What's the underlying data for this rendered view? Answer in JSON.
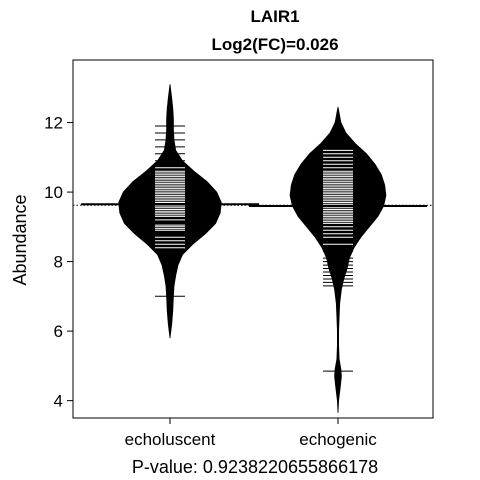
{
  "chart_data": {
    "type": "beanplot",
    "title": "LAIR1",
    "subtitle": "Log2(FC)=0.026",
    "xlabel": "P-value: 0.9238220655866178",
    "ylabel": "Abundance",
    "ylim": [
      3.5,
      13.8
    ],
    "yticks": [
      4,
      6,
      8,
      10,
      12
    ],
    "overall_line": 9.62,
    "grid": false,
    "colors": {
      "bean": "#000000",
      "beanlines": "#ffffff",
      "background": "#ffffff",
      "axis": "#000000"
    },
    "categories": [
      "echoluscent",
      "echogenic"
    ],
    "series": [
      {
        "category": "echoluscent",
        "mean": 9.65,
        "range": [
          5.8,
          13.1
        ],
        "density": [
          [
            5.8,
            0.0
          ],
          [
            6.2,
            0.03
          ],
          [
            6.6,
            0.05
          ],
          [
            7.0,
            0.06
          ],
          [
            7.3,
            0.07
          ],
          [
            7.6,
            0.1
          ],
          [
            7.9,
            0.14
          ],
          [
            8.2,
            0.22
          ],
          [
            8.5,
            0.4
          ],
          [
            8.8,
            0.62
          ],
          [
            9.1,
            0.8
          ],
          [
            9.4,
            0.88
          ],
          [
            9.7,
            0.9
          ],
          [
            10.0,
            0.82
          ],
          [
            10.3,
            0.65
          ],
          [
            10.6,
            0.42
          ],
          [
            10.9,
            0.22
          ],
          [
            11.2,
            0.1
          ],
          [
            11.5,
            0.07
          ],
          [
            11.8,
            0.06
          ],
          [
            12.1,
            0.06
          ],
          [
            12.4,
            0.05
          ],
          [
            12.7,
            0.03
          ],
          [
            13.1,
            0.0
          ]
        ],
        "beanlines": [
          7.0,
          8.4,
          8.5,
          8.6,
          8.7,
          8.9,
          8.95,
          9.0,
          9.05,
          9.2,
          9.3,
          9.35,
          9.4,
          9.45,
          9.5,
          9.55,
          9.6,
          9.65,
          9.7,
          9.75,
          9.8,
          9.85,
          9.9,
          9.95,
          10.0,
          10.05,
          10.1,
          10.15,
          10.2,
          10.25,
          10.3,
          10.35,
          10.4,
          10.45,
          10.5,
          10.55,
          10.6,
          10.7,
          10.9,
          11.1,
          11.3,
          11.5,
          11.7,
          11.9
        ]
      },
      {
        "category": "echogenic",
        "mean": 9.6,
        "range": [
          3.65,
          12.45
        ],
        "density": [
          [
            3.65,
            0.0
          ],
          [
            4.0,
            0.01
          ],
          [
            4.4,
            0.04
          ],
          [
            4.7,
            0.06
          ],
          [
            4.9,
            0.05
          ],
          [
            5.2,
            0.02
          ],
          [
            5.6,
            0.01
          ],
          [
            6.0,
            0.01
          ],
          [
            6.4,
            0.02
          ],
          [
            6.8,
            0.03
          ],
          [
            7.2,
            0.06
          ],
          [
            7.5,
            0.1
          ],
          [
            7.8,
            0.16
          ],
          [
            8.1,
            0.2
          ],
          [
            8.4,
            0.28
          ],
          [
            8.7,
            0.4
          ],
          [
            9.0,
            0.55
          ],
          [
            9.3,
            0.7
          ],
          [
            9.6,
            0.8
          ],
          [
            9.9,
            0.84
          ],
          [
            10.2,
            0.82
          ],
          [
            10.5,
            0.76
          ],
          [
            10.8,
            0.65
          ],
          [
            11.1,
            0.5
          ],
          [
            11.4,
            0.3
          ],
          [
            11.7,
            0.14
          ],
          [
            12.0,
            0.05
          ],
          [
            12.45,
            0.0
          ]
        ],
        "beanlines": [
          4.85,
          7.3,
          7.4,
          7.5,
          7.6,
          7.7,
          7.8,
          7.9,
          8.0,
          8.1,
          8.3,
          8.5,
          8.7,
          8.8,
          8.9,
          9.0,
          9.1,
          9.15,
          9.2,
          9.25,
          9.3,
          9.35,
          9.4,
          9.45,
          9.5,
          9.55,
          9.6,
          9.65,
          9.7,
          9.75,
          9.8,
          9.85,
          9.9,
          9.95,
          10.0,
          10.05,
          10.1,
          10.15,
          10.2,
          10.25,
          10.3,
          10.35,
          10.4,
          10.45,
          10.5,
          10.55,
          10.6,
          10.7,
          10.8,
          10.9,
          11.0,
          11.1,
          11.2
        ]
      }
    ]
  }
}
